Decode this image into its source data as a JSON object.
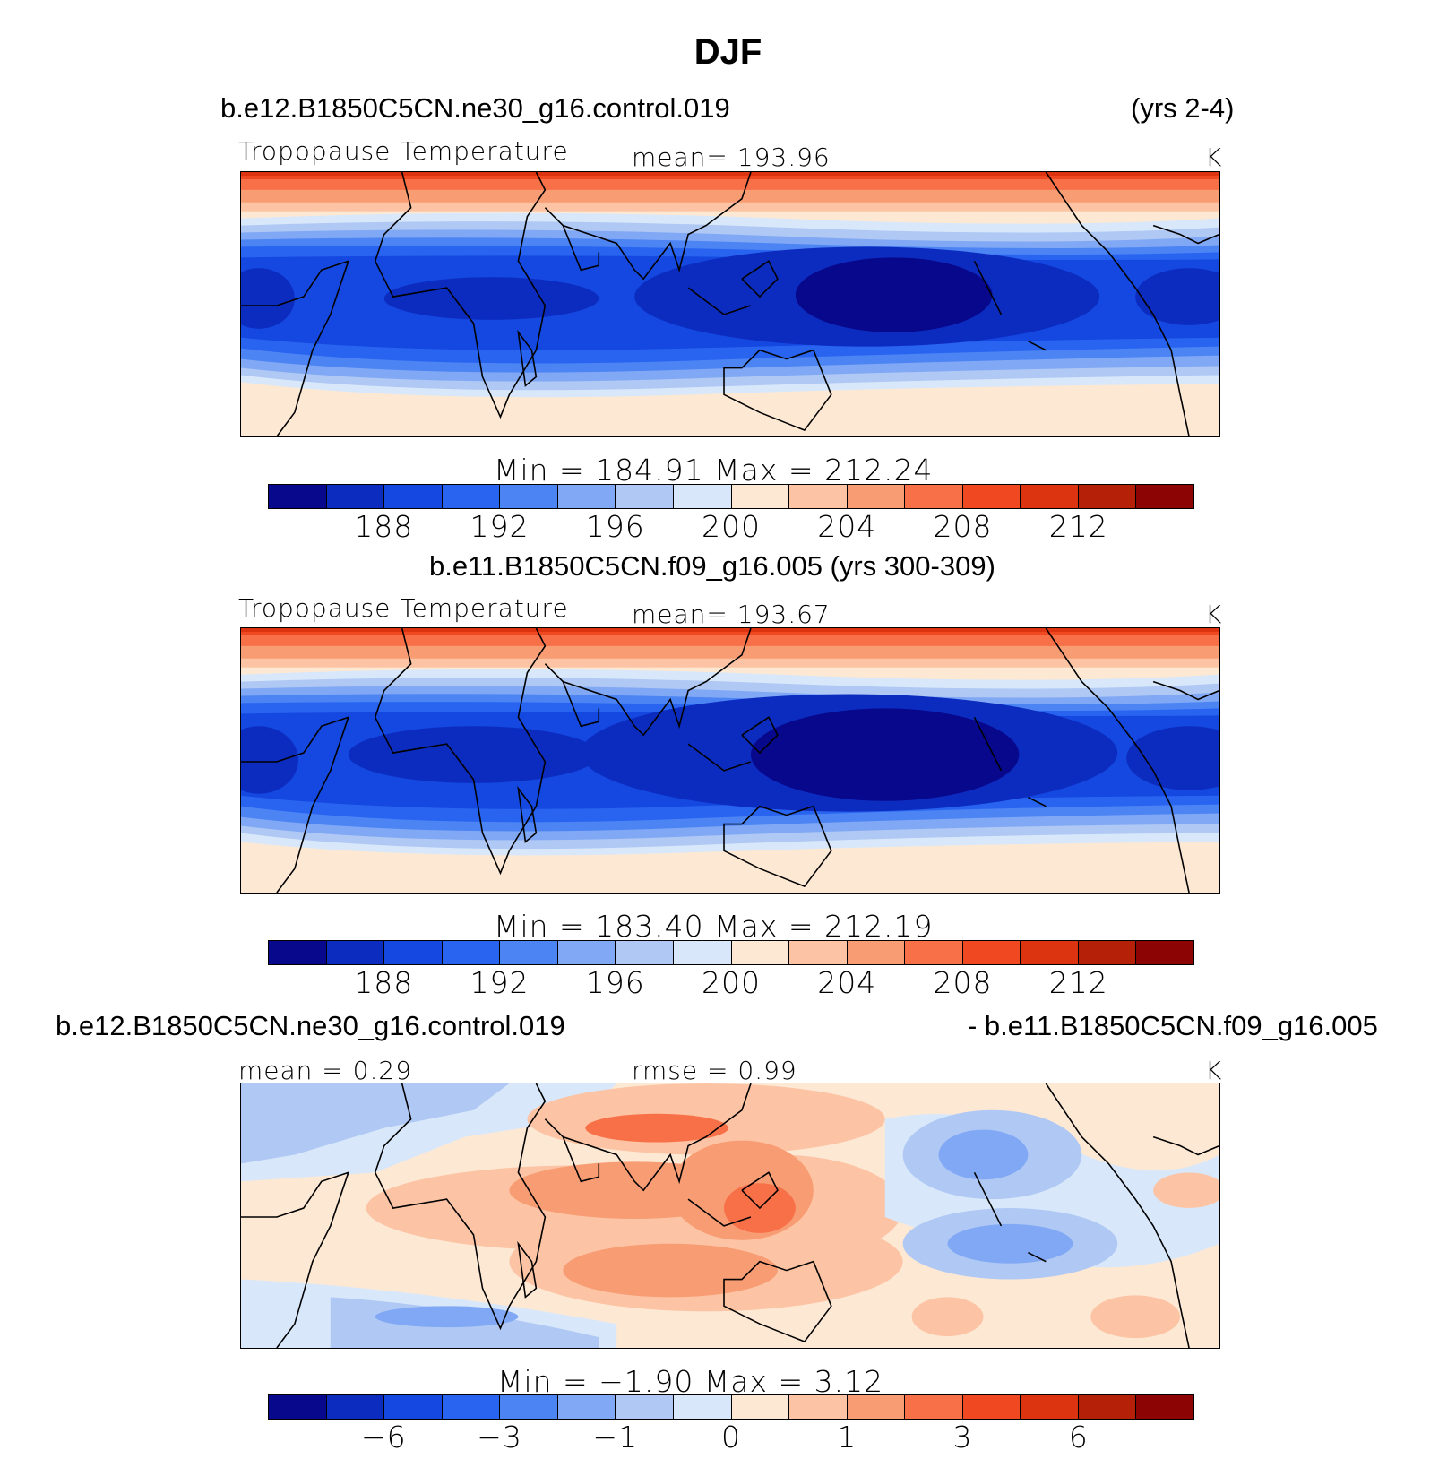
{
  "title": "DJF",
  "palette": [
    "#08088c",
    "#0c2cc0",
    "#1448e0",
    "#2864f0",
    "#4c84f4",
    "#80a8f4",
    "#afc8f4",
    "#d8e8fa",
    "#fde8d4",
    "#fcc4a4",
    "#f89c74",
    "#f87048",
    "#f04820",
    "#dc3410",
    "#b42008",
    "#8c0404"
  ],
  "panels": [
    {
      "caption_left": "b.e12.B1850C5CN.ne30_g16.control.019",
      "caption_right": "(yrs 2-4)",
      "label_left": "Tropopause Temperature",
      "label_center": "mean= 193.96",
      "unit": "K",
      "minmax": "Min = 184.91 Max = 212.24",
      "ticks": [
        "188",
        "192",
        "196",
        "200",
        "204",
        "208",
        "212"
      ]
    },
    {
      "caption": "b.e11.B1850C5CN.f09_g16.005 (yrs 300-309)",
      "label_left": "Tropopause Temperature",
      "label_center": "mean= 193.67",
      "unit": "K",
      "minmax": "Min = 183.40 Max = 212.19",
      "ticks": [
        "188",
        "192",
        "196",
        "200",
        "204",
        "208",
        "212"
      ]
    },
    {
      "caption_left": "b.e12.B1850C5CN.ne30_g16.control.019",
      "caption_right": "- b.e11.B1850C5CN.f09_g16.005",
      "label_left": "mean =    0.29",
      "label_center": "rmse =    0.99",
      "unit": "K",
      "minmax": "Min =   −1.90 Max =    3.12",
      "ticks": [
        "−6",
        "−3",
        "−1",
        "0",
        "1",
        "3",
        "6"
      ]
    }
  ]
}
